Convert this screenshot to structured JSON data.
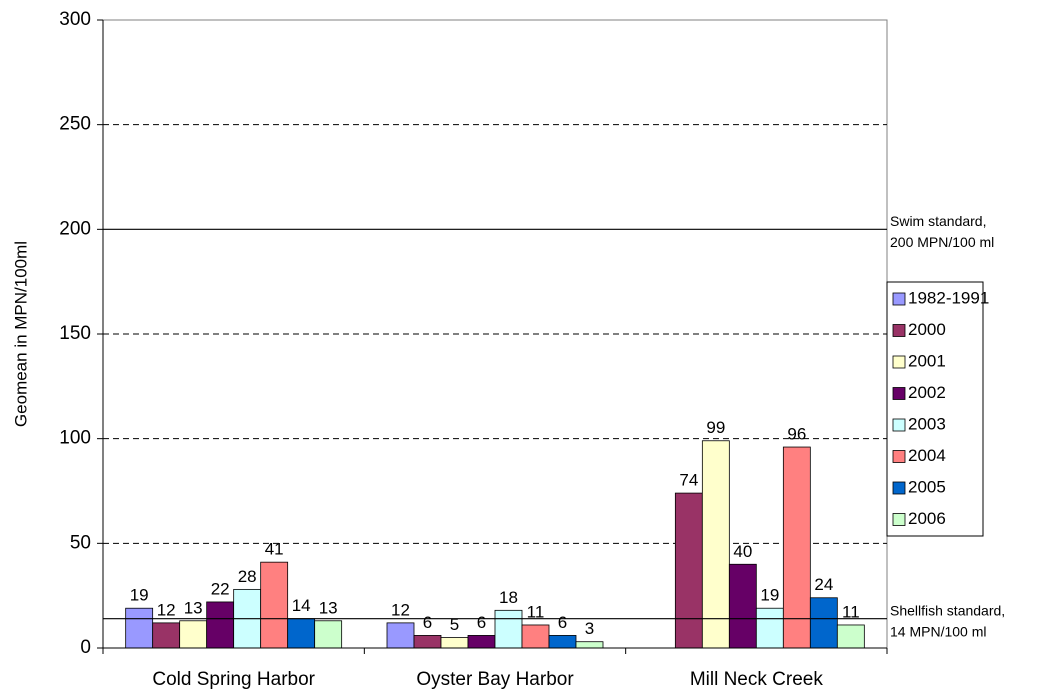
{
  "chart_data": {
    "type": "bar",
    "y_label": "Geomean in MPN/100ml",
    "categories": [
      "Cold Spring Harbor",
      "Oyster Bay Harbor",
      "Mill Neck Creek"
    ],
    "series": [
      {
        "name": "1982-1991",
        "color": "#9999ff",
        "values": [
          19,
          12,
          null
        ]
      },
      {
        "name": "2000",
        "color": "#993366",
        "values": [
          12,
          6,
          74
        ]
      },
      {
        "name": "2001",
        "color": "#ffffcc",
        "values": [
          13,
          5,
          99
        ]
      },
      {
        "name": "2002",
        "color": "#660066",
        "values": [
          22,
          6,
          40
        ]
      },
      {
        "name": "2003",
        "color": "#ccffff",
        "values": [
          28,
          18,
          19
        ]
      },
      {
        "name": "2004",
        "color": "#ff8080",
        "values": [
          41,
          11,
          96
        ]
      },
      {
        "name": "2005",
        "color": "#0066cc",
        "values": [
          14,
          6,
          24
        ]
      },
      {
        "name": "2006",
        "color": "#ccffcc",
        "values": [
          13,
          3,
          11
        ]
      }
    ],
    "ylim": [
      0,
      300
    ],
    "yticks": [
      0,
      50,
      100,
      150,
      200,
      250,
      300
    ],
    "grid": true,
    "legend": "right",
    "reference_lines": [
      {
        "value": 200,
        "text": [
          "Swim standard,",
          "200 MPN/100 ml"
        ]
      },
      {
        "value": 14,
        "text": [
          "Shellfish standard,",
          "14 MPN/100 ml"
        ]
      }
    ]
  }
}
